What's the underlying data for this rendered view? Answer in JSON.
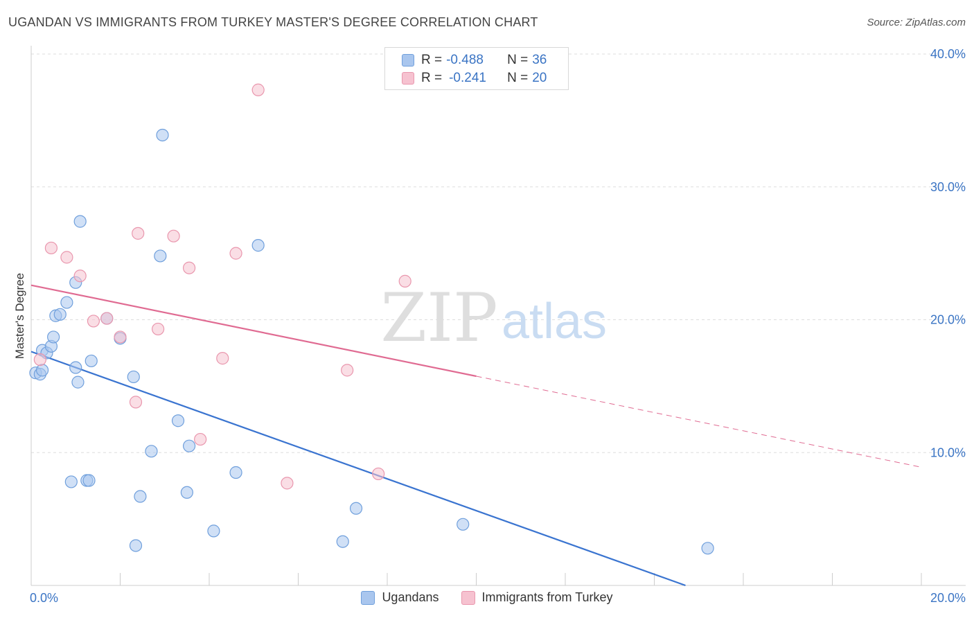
{
  "header": {
    "title": "UGANDAN VS IMMIGRANTS FROM TURKEY MASTER'S DEGREE CORRELATION CHART",
    "source": "Source: ZipAtlas.com"
  },
  "watermark": {
    "zip": "ZIP",
    "atlas": "atlas"
  },
  "stats": [
    {
      "r_label": "R =",
      "r_value": "-0.488",
      "n_label": "N =",
      "n_value": "36",
      "color": "#a9c6ee",
      "border": "#6f9fdc"
    },
    {
      "r_label": "R =",
      "r_value": "-0.241",
      "n_label": "N =",
      "n_value": "20",
      "color": "#f6c2d0",
      "border": "#e996ad"
    }
  ],
  "legend": [
    {
      "label": "Ugandans",
      "color": "#a9c6ee",
      "border": "#6f9fdc"
    },
    {
      "label": "Immigrants from Turkey",
      "color": "#f6c2d0",
      "border": "#e996ad"
    }
  ],
  "chart_data": {
    "type": "scatter",
    "title": "UGANDAN VS IMMIGRANTS FROM TURKEY MASTER'S DEGREE CORRELATION CHART",
    "xlabel": "",
    "ylabel": "Master's Degree",
    "xlim": [
      0,
      20
    ],
    "ylim": [
      0,
      40
    ],
    "x_tick_labels": [
      "0.0%",
      "20.0%"
    ],
    "y_ticks": [
      10,
      20,
      30,
      40
    ],
    "y_tick_labels": [
      "10.0%",
      "20.0%",
      "30.0%",
      "40.0%"
    ],
    "grid": true,
    "legend_position": "bottom",
    "series": [
      {
        "name": "Ugandans",
        "color": "#6f9fdc",
        "fill": "#a9c6ee",
        "trend_color": "#3a74d0",
        "trend": {
          "x0": 0.0,
          "y0": 17.6,
          "x1": 14.7,
          "y1": 0.0,
          "dashed_from": null
        },
        "points": [
          [
            0.1,
            16.0
          ],
          [
            0.2,
            15.9
          ],
          [
            0.25,
            16.2
          ],
          [
            0.25,
            17.7
          ],
          [
            0.35,
            17.5
          ],
          [
            0.45,
            18.0
          ],
          [
            0.5,
            18.7
          ],
          [
            0.55,
            20.3
          ],
          [
            0.65,
            20.4
          ],
          [
            0.8,
            21.3
          ],
          [
            1.0,
            22.8
          ],
          [
            1.1,
            27.4
          ],
          [
            1.05,
            15.3
          ],
          [
            1.0,
            16.4
          ],
          [
            0.9,
            7.8
          ],
          [
            1.25,
            7.9
          ],
          [
            1.3,
            7.9
          ],
          [
            1.35,
            16.9
          ],
          [
            1.7,
            20.1
          ],
          [
            2.0,
            18.6
          ],
          [
            2.3,
            15.7
          ],
          [
            2.35,
            3.0
          ],
          [
            2.45,
            6.7
          ],
          [
            2.7,
            10.1
          ],
          [
            2.9,
            24.8
          ],
          [
            2.95,
            33.9
          ],
          [
            3.3,
            12.4
          ],
          [
            3.5,
            7.0
          ],
          [
            3.55,
            10.5
          ],
          [
            4.1,
            4.1
          ],
          [
            4.6,
            8.5
          ],
          [
            5.1,
            25.6
          ],
          [
            7.0,
            3.3
          ],
          [
            7.3,
            5.8
          ],
          [
            9.7,
            4.6
          ],
          [
            15.2,
            2.8
          ]
        ]
      },
      {
        "name": "Immigrants from Turkey",
        "color": "#e996ad",
        "fill": "#f6c2d0",
        "trend_color": "#e06b92",
        "trend": {
          "x0": 0.0,
          "y0": 22.6,
          "x1": 20.0,
          "y1": 8.9,
          "dashed_from": 10.0
        },
        "points": [
          [
            0.2,
            17.0
          ],
          [
            0.45,
            25.4
          ],
          [
            0.8,
            24.7
          ],
          [
            1.1,
            23.3
          ],
          [
            1.4,
            19.9
          ],
          [
            1.7,
            20.1
          ],
          [
            2.0,
            18.7
          ],
          [
            2.35,
            13.8
          ],
          [
            2.4,
            26.5
          ],
          [
            2.85,
            19.3
          ],
          [
            3.2,
            26.3
          ],
          [
            3.55,
            23.9
          ],
          [
            3.8,
            11.0
          ],
          [
            4.3,
            17.1
          ],
          [
            4.6,
            25.0
          ],
          [
            5.1,
            37.3
          ],
          [
            5.75,
            7.7
          ],
          [
            7.1,
            16.2
          ],
          [
            7.8,
            8.4
          ],
          [
            8.4,
            22.9
          ]
        ]
      }
    ]
  }
}
